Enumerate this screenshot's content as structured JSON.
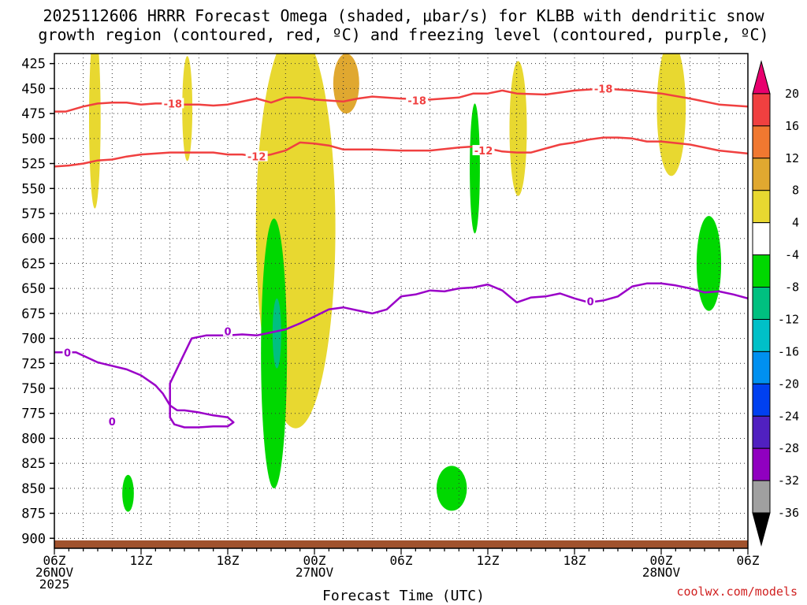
{
  "title_line1": "2025112606 HRRR Forecast Omega (shaded, μbar/s) for KLBB with dendritic snow",
  "title_line2": "growth region (contoured, red, ºC) and freezing level (contoured, purple, ºC)",
  "xlabel": "Forecast Time (UTC)",
  "credit": "coolwx.com/models",
  "chart_data": {
    "type": "heatmap",
    "title": "2025112606 HRRR Forecast Omega (shaded, μbar/s) for KLBB with dendritic snow growth region (contoured, red, ºC) and freezing level (contoured, purple, ºC)",
    "xlabel": "Forecast Time (UTC)",
    "ylabel": "",
    "x_range_hours": [
      0,
      48
    ],
    "y_range_hPa": [
      415,
      910
    ],
    "y_ticks": [
      425,
      450,
      475,
      500,
      525,
      550,
      575,
      600,
      625,
      650,
      675,
      700,
      725,
      750,
      775,
      800,
      825,
      850,
      875,
      900
    ],
    "x_ticks": [
      {
        "hour": 0,
        "lines": [
          "06Z",
          "26NOV",
          "2025"
        ]
      },
      {
        "hour": 6,
        "lines": [
          "12Z"
        ]
      },
      {
        "hour": 12,
        "lines": [
          "18Z"
        ]
      },
      {
        "hour": 18,
        "lines": [
          "00Z",
          "27NOV"
        ]
      },
      {
        "hour": 24,
        "lines": [
          "06Z"
        ]
      },
      {
        "hour": 30,
        "lines": [
          "12Z"
        ]
      },
      {
        "hour": 36,
        "lines": [
          "18Z"
        ]
      },
      {
        "hour": 42,
        "lines": [
          "00Z",
          "28NOV"
        ]
      },
      {
        "hour": 48,
        "lines": [
          "06Z"
        ]
      }
    ],
    "grid": true,
    "colorbar": {
      "labels": [
        "20",
        "16",
        "12",
        "8",
        "4",
        "-4",
        "-8",
        "-12",
        "-16",
        "-20",
        "-24",
        "-28",
        "-32",
        "-36"
      ],
      "colors_top_to_bottom": [
        "#e8006e",
        "#f04040",
        "#f07830",
        "#e0a830",
        "#e8d830",
        "#ffffff",
        "#00d800",
        "#00c080",
        "#00c0c8",
        "#0090f0",
        "#0040f0",
        "#5020c0",
        "#9000c0",
        "#a0a0a0",
        "#000000"
      ]
    },
    "contours": [
      {
        "name": "dendritic snow growth region",
        "color": "#f04040",
        "levels": [
          -18,
          -12
        ],
        "labels": [
          {
            "text": "-18",
            "hour": 8.2,
            "hPa": 465
          },
          {
            "text": "-18",
            "hour": 25.1,
            "hPa": 462
          },
          {
            "text": "-18",
            "hour": 38.0,
            "hPa": 450
          },
          {
            "text": "-12",
            "hour": 14.0,
            "hPa": 518
          },
          {
            "text": "-12",
            "hour": 29.7,
            "hPa": 512
          }
        ],
        "lines": [
          {
            "level": -18,
            "points": [
              [
                0,
                473
              ],
              [
                0.8,
                473
              ],
              [
                2,
                468
              ],
              [
                3,
                465
              ],
              [
                4,
                464
              ],
              [
                5,
                464
              ],
              [
                6,
                466
              ],
              [
                7,
                465
              ],
              [
                8,
                465
              ],
              [
                9,
                466
              ],
              [
                10,
                466
              ],
              [
                11,
                467
              ],
              [
                12,
                466
              ],
              [
                13,
                463
              ],
              [
                14,
                460
              ],
              [
                15,
                464
              ],
              [
                16,
                459
              ],
              [
                17,
                459
              ],
              [
                18,
                461
              ],
              [
                19,
                462
              ],
              [
                20,
                463
              ],
              [
                21,
                460
              ],
              [
                22,
                458
              ],
              [
                24,
                460
              ],
              [
                26,
                461
              ],
              [
                28,
                459
              ],
              [
                29,
                455
              ],
              [
                30,
                455
              ],
              [
                31,
                452
              ],
              [
                32,
                455
              ],
              [
                34,
                456
              ],
              [
                35,
                454
              ],
              [
                36,
                452
              ],
              [
                38,
                450
              ],
              [
                40,
                452
              ],
              [
                42,
                455
              ],
              [
                44,
                460
              ],
              [
                46,
                466
              ],
              [
                48,
                468
              ]
            ]
          },
          {
            "level": -12,
            "points": [
              [
                0,
                528
              ],
              [
                1,
                527
              ],
              [
                2,
                525
              ],
              [
                3,
                522
              ],
              [
                4,
                521
              ],
              [
                5,
                518
              ],
              [
                6,
                516
              ],
              [
                8,
                514
              ],
              [
                10,
                514
              ],
              [
                11,
                514
              ],
              [
                12,
                516
              ],
              [
                13,
                516
              ],
              [
                14,
                518
              ],
              [
                15,
                516
              ],
              [
                16,
                512
              ],
              [
                17,
                504
              ],
              [
                18,
                505
              ],
              [
                19,
                507
              ],
              [
                20,
                511
              ],
              [
                22,
                511
              ],
              [
                24,
                512
              ],
              [
                26,
                512
              ],
              [
                28,
                509
              ],
              [
                29,
                508
              ],
              [
                30,
                510
              ],
              [
                31,
                513
              ],
              [
                32,
                514
              ],
              [
                33,
                514
              ],
              [
                34,
                510
              ],
              [
                35,
                506
              ],
              [
                36,
                504
              ],
              [
                37,
                501
              ],
              [
                38,
                499
              ],
              [
                39,
                499
              ],
              [
                40,
                500
              ],
              [
                41,
                503
              ],
              [
                42,
                503
              ],
              [
                44,
                506
              ],
              [
                46,
                512
              ],
              [
                48,
                515
              ]
            ]
          }
        ]
      },
      {
        "name": "freezing level",
        "color": "#9a00c8",
        "levels": [
          0
        ],
        "labels": [
          {
            "text": "0",
            "hour": 0.9,
            "hPa": 714
          },
          {
            "text": "0",
            "hour": 12.0,
            "hPa": 693
          },
          {
            "text": "0",
            "hour": 37.1,
            "hPa": 663
          },
          {
            "text": "0",
            "hour": 4.0,
            "hPa": 783
          }
        ],
        "lines": [
          {
            "level": 0,
            "points": [
              [
                0,
                714
              ],
              [
                1.5,
                714
              ],
              [
                3,
                724
              ],
              [
                5,
                731
              ],
              [
                6,
                737
              ],
              [
                7,
                747
              ],
              [
                7.5,
                755
              ],
              [
                8,
                767
              ],
              [
                8.5,
                772
              ],
              [
                9,
                772
              ],
              [
                10,
                774
              ],
              [
                11,
                777
              ],
              [
                12,
                779
              ],
              [
                12.4,
                784
              ],
              [
                12,
                788
              ],
              [
                11,
                788
              ],
              [
                10,
                789
              ],
              [
                9,
                789
              ],
              [
                8.3,
                786
              ],
              [
                8,
                779
              ],
              [
                8,
                763
              ],
              [
                8,
                745
              ],
              [
                9,
                715
              ],
              [
                9.5,
                700
              ],
              [
                10.5,
                697
              ],
              [
                12,
                697
              ],
              [
                13,
                696
              ],
              [
                14,
                697
              ],
              [
                15,
                694
              ],
              [
                16,
                691
              ],
              [
                17,
                685
              ],
              [
                18,
                678
              ],
              [
                19,
                671
              ],
              [
                20,
                669
              ],
              [
                21,
                672
              ],
              [
                22,
                675
              ],
              [
                23,
                671
              ],
              [
                24,
                658
              ],
              [
                25,
                656
              ],
              [
                26,
                652
              ],
              [
                27,
                653
              ],
              [
                28,
                650
              ],
              [
                29,
                649
              ],
              [
                30,
                646
              ],
              [
                31,
                652
              ],
              [
                32,
                664
              ],
              [
                33,
                659
              ],
              [
                34,
                658
              ],
              [
                35,
                655
              ],
              [
                36,
                660
              ],
              [
                37,
                664
              ],
              [
                38,
                662
              ],
              [
                39,
                658
              ],
              [
                40,
                648
              ],
              [
                41,
                645
              ],
              [
                42,
                645
              ],
              [
                43,
                647
              ],
              [
                44,
                650
              ],
              [
                45,
                654
              ],
              [
                46,
                653
              ],
              [
                47,
                656
              ],
              [
                48,
                660
              ]
            ]
          },
          {
            "level": 0,
            "closed_near": [
              4.0,
              783
            ]
          }
        ]
      }
    ],
    "shaded_regions": [
      {
        "band": "4 to 8",
        "color": "#e8d830",
        "center": [
          2.8,
          480
        ],
        "extent_hours": [
          2.4,
          3.2
        ],
        "extent_hPa": [
          415,
          595
        ]
      },
      {
        "band": "4 to 8",
        "color": "#e8d830",
        "center": [
          9.2,
          470
        ],
        "extent_hours": [
          8.9,
          9.6
        ],
        "extent_hPa": [
          415,
          520
        ]
      },
      {
        "band": "4 to 8",
        "color": "#e8d830",
        "center": [
          16.7,
          590
        ],
        "extent_hours": [
          14.0,
          19.5
        ],
        "extent_hPa": [
          415,
          815
        ]
      },
      {
        "band": "8 to 12",
        "color": "#e0a830",
        "center": [
          20.2,
          445
        ],
        "extent_hours": [
          19.2,
          21.0
        ],
        "extent_hPa": [
          415,
          475
        ]
      },
      {
        "band": "4 to 8",
        "color": "#e8d830",
        "center": [
          32.1,
          490
        ],
        "extent_hours": [
          31.6,
          32.8
        ],
        "extent_hPa": [
          415,
          550
        ]
      },
      {
        "band": "4 to 8",
        "color": "#e8d830",
        "center": [
          42.7,
          470
        ],
        "extent_hours": [
          41.4,
          43.4
        ],
        "extent_hPa": [
          415,
          550
        ]
      },
      {
        "band": "-4 to -8",
        "color": "#00d800",
        "center": [
          15.2,
          715
        ],
        "extent_hours": [
          14.4,
          16.2
        ],
        "extent_hPa": [
          590,
          860
        ]
      },
      {
        "band": "-8 to -12",
        "color": "#00c080",
        "center": [
          15.4,
          695
        ],
        "extent_hours": [
          15.1,
          15.7
        ],
        "extent_hPa": [
          655,
          725
        ]
      },
      {
        "band": "-4 to -8",
        "color": "#00d800",
        "center": [
          29.1,
          530
        ],
        "extent_hours": [
          28.8,
          29.5
        ],
        "extent_hPa": [
          460,
          590
        ]
      },
      {
        "band": "-4 to -8",
        "color": "#00d800",
        "center": [
          5.1,
          855
        ],
        "extent_hours": [
          4.7,
          5.5
        ],
        "extent_hPa": [
          843,
          880
        ]
      },
      {
        "band": "-4 to -8",
        "color": "#00d800",
        "center": [
          27.5,
          850
        ],
        "extent_hours": [
          26.2,
          28.3
        ],
        "extent_hPa": [
          835,
          880
        ]
      },
      {
        "band": "-4 to -8",
        "color": "#00d800",
        "center": [
          45.3,
          625
        ],
        "extent_hours": [
          44.7,
          46.4
        ],
        "extent_hPa": [
          565,
          660
        ]
      }
    ]
  }
}
